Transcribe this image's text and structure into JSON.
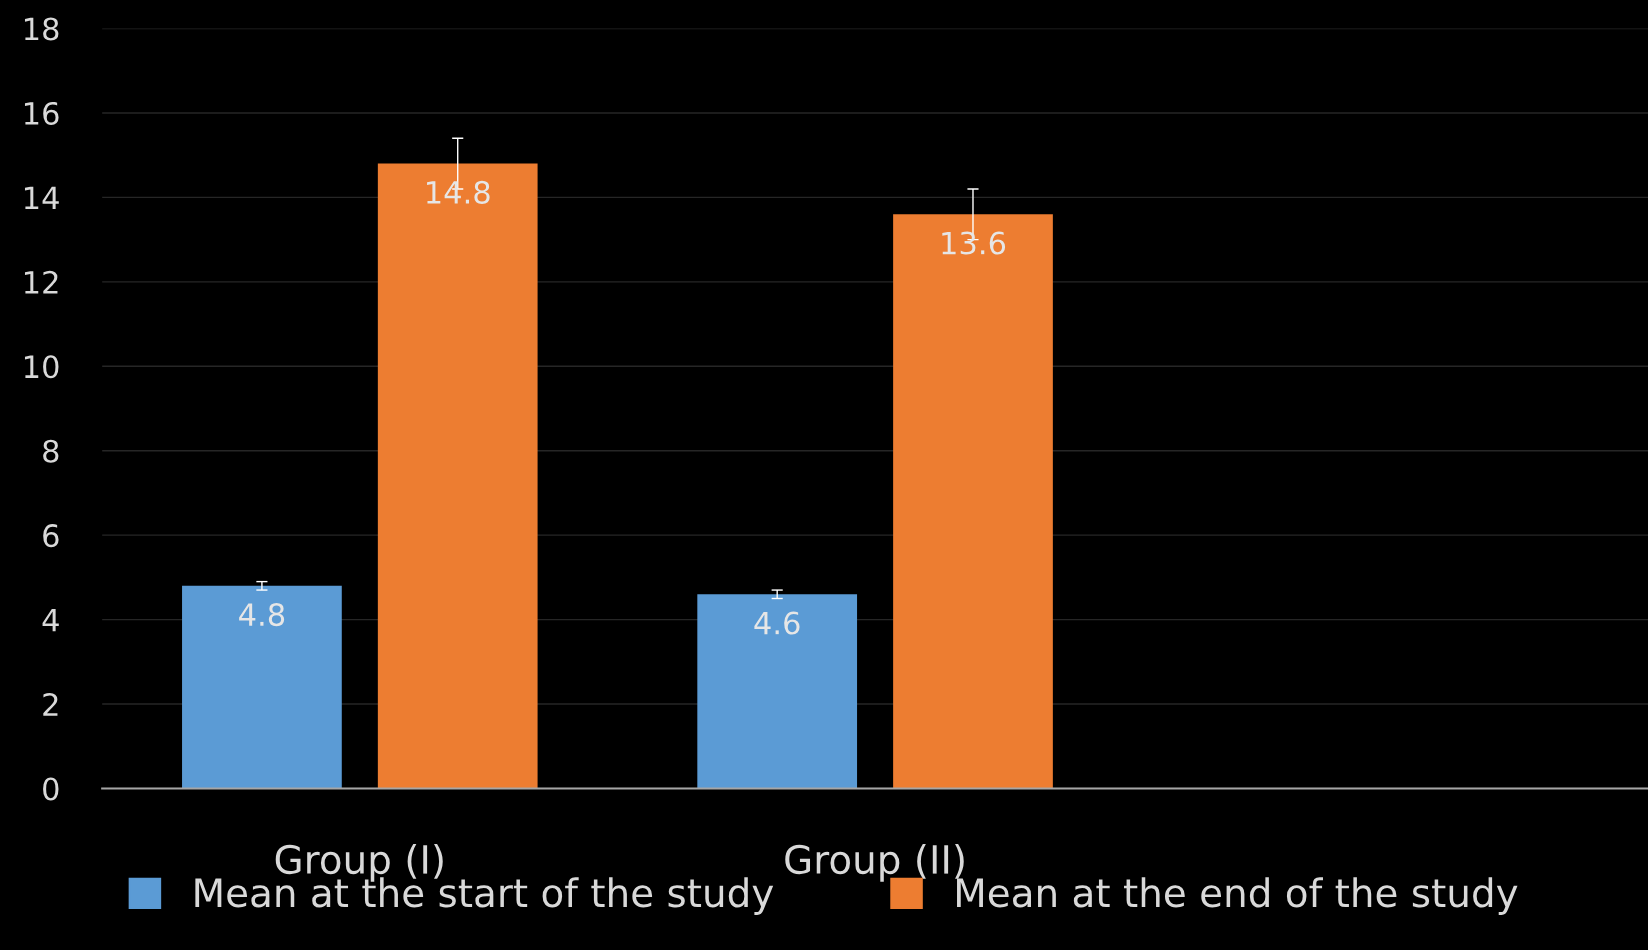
{
  "chart_data": {
    "type": "bar",
    "categories": [
      "Group (I)",
      "Group (II)",
      null
    ],
    "series": [
      {
        "name": "Mean at the start of the study",
        "color": "#5b9bd5",
        "values": [
          4.8,
          4.6,
          null
        ],
        "errors": [
          0.1,
          0.1,
          null
        ]
      },
      {
        "name": "Mean at the end of the study",
        "color": "#ed7d31",
        "values": [
          14.8,
          13.6,
          null
        ],
        "errors": [
          0.6,
          0.6,
          null
        ]
      }
    ],
    "ylim": [
      0,
      18
    ],
    "yticks": [
      0,
      2,
      4,
      6,
      8,
      10,
      12,
      14,
      16,
      18
    ],
    "grid": "y",
    "legend": "bottom",
    "data_labels": true
  }
}
